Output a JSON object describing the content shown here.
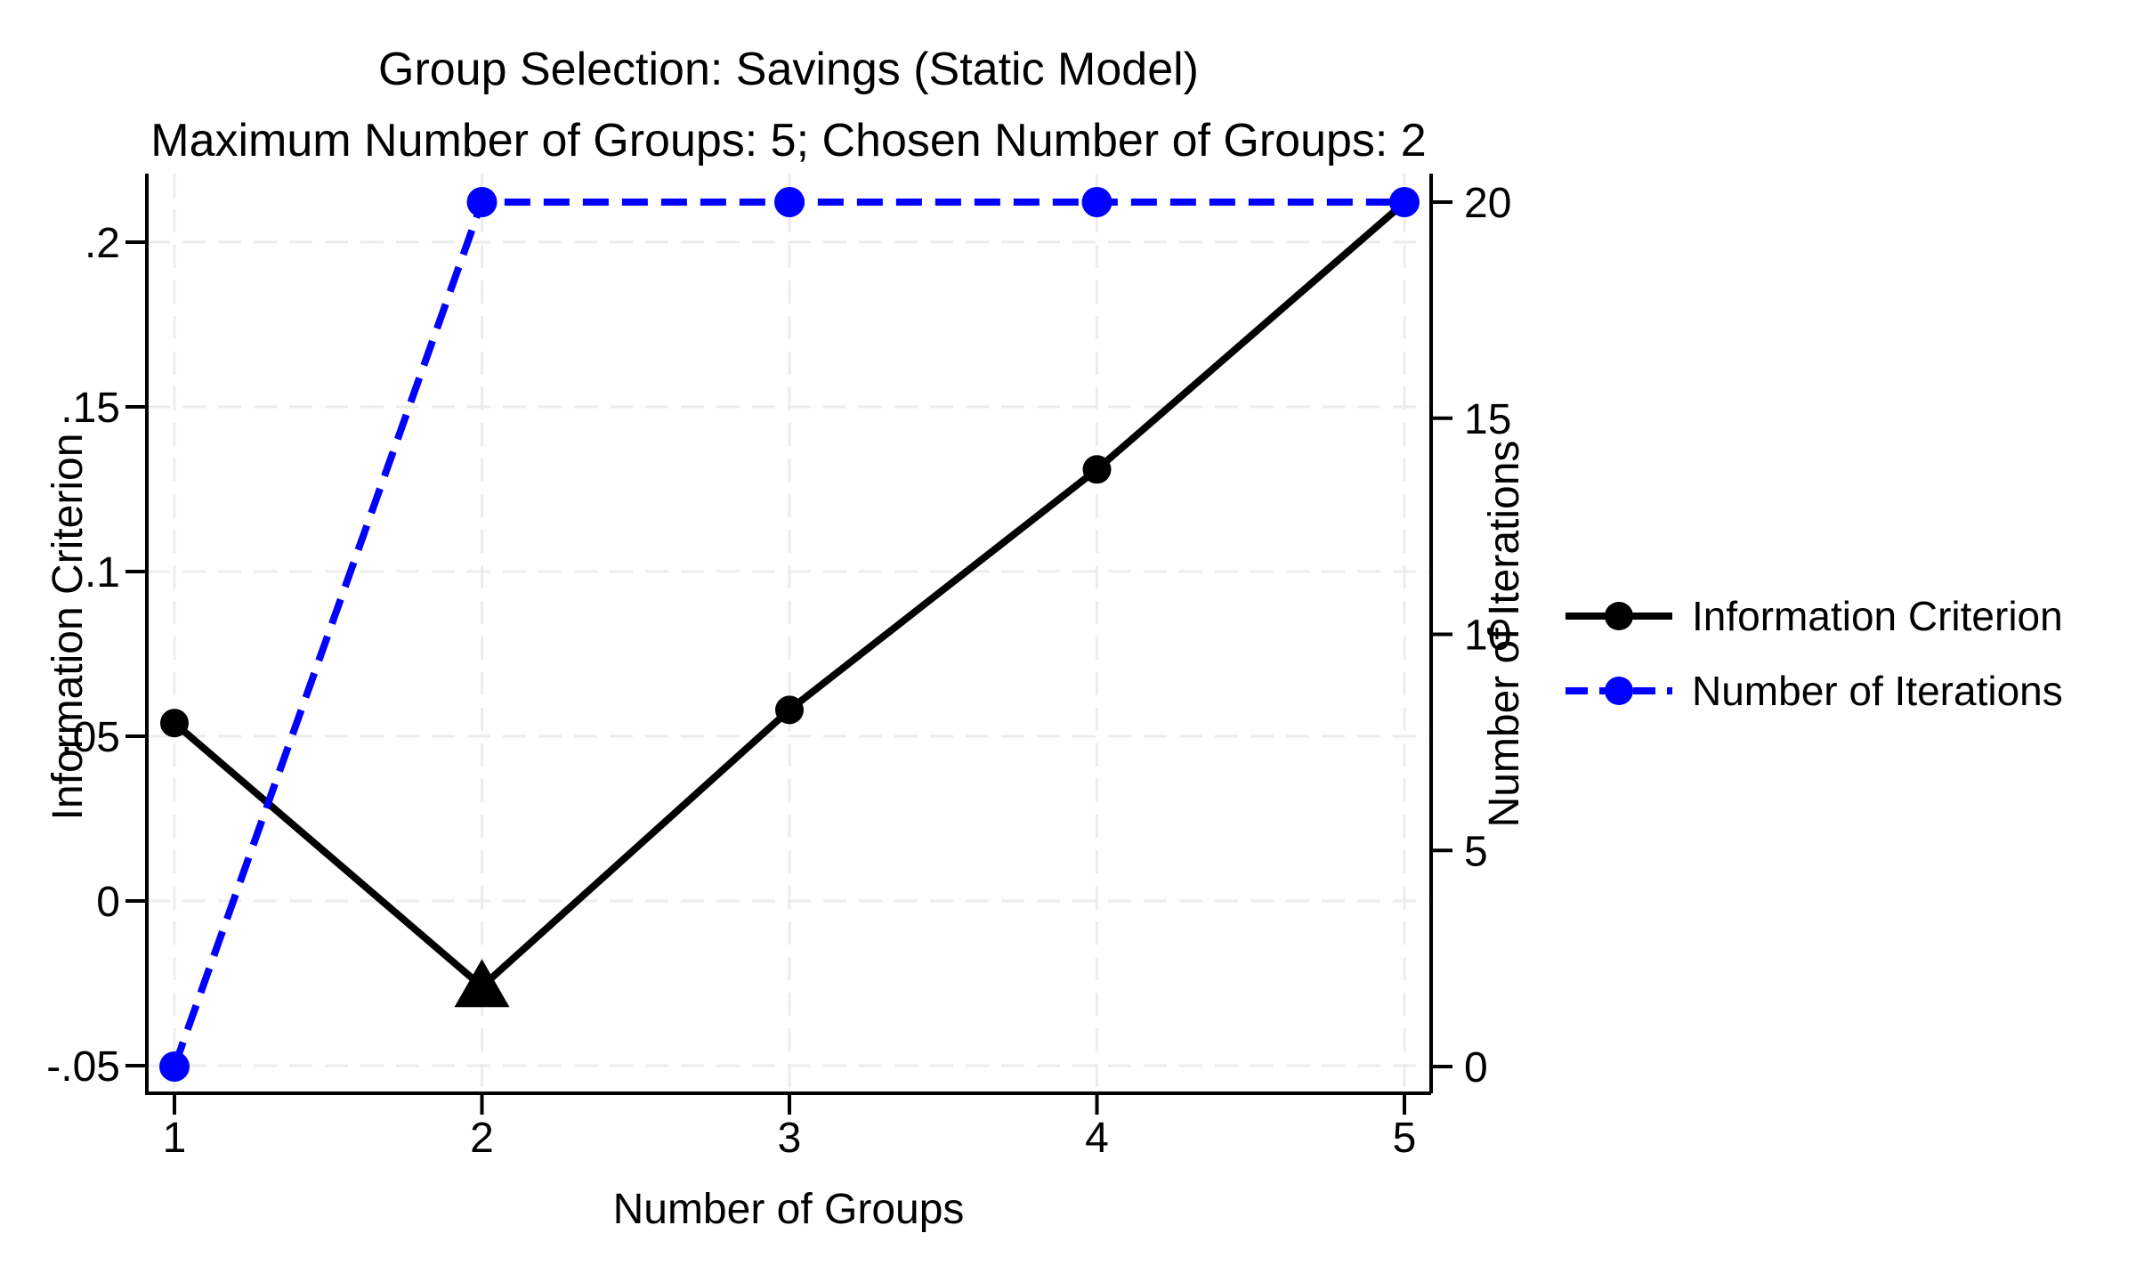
{
  "chart_data": {
    "type": "line",
    "title": "Group Selection: Savings (Static Model)",
    "subtitle": "Maximum Number of Groups: 5; Chosen Number of Groups: 2",
    "xlabel": "Number of Groups",
    "ylabel_left": "Information Criterion",
    "ylabel_right": "Number of Iterations",
    "x": [
      1,
      2,
      3,
      4,
      5
    ],
    "x_tick_labels": [
      "1",
      "2",
      "3",
      "4",
      "5"
    ],
    "y_left_ticks": [
      {
        "label": ".2",
        "value": 0.2
      },
      {
        "label": ".15",
        "value": 0.15
      },
      {
        "label": ".1",
        "value": 0.1
      },
      {
        "label": ".05",
        "value": 0.05
      },
      {
        "label": "0",
        "value": 0
      },
      {
        "label": "-.05",
        "value": -0.05
      }
    ],
    "y_right_ticks": [
      {
        "label": "20",
        "value": 20
      },
      {
        "label": "15",
        "value": 15
      },
      {
        "label": "10",
        "value": 10
      },
      {
        "label": "5",
        "value": 5
      },
      {
        "label": "0",
        "value": 0
      }
    ],
    "ylim_left": [
      -0.058,
      0.221
    ],
    "ylim_right": [
      -0.62,
      20.66
    ],
    "grid": true,
    "legend_position": "right",
    "series": [
      {
        "name": "Information Criterion",
        "axis": "left",
        "color": "#000000",
        "line_style": "solid",
        "marker": "circle",
        "values": [
          0.054,
          -0.026,
          0.058,
          0.131,
          0.212
        ]
      },
      {
        "name": "Number of Iterations",
        "axis": "right",
        "color": "#0000ff",
        "line_style": "dashed",
        "marker": "circle",
        "values": [
          0,
          20,
          20,
          20,
          20
        ]
      }
    ],
    "annotations": {
      "chosen_group_marker": {
        "x": 2,
        "series": "Information Criterion",
        "shape": "triangle",
        "note": "chosen number of groups highlighted with filled triangle marker"
      }
    }
  },
  "legend": {
    "items": [
      {
        "label": "Information Criterion"
      },
      {
        "label": "Number of Iterations"
      }
    ]
  },
  "colors": {
    "ic_series": "#000000",
    "iterations_series": "#0000ff",
    "gridline": "#ececec",
    "axis": "#000000",
    "background": "#ffffff",
    "text": "#000000"
  }
}
